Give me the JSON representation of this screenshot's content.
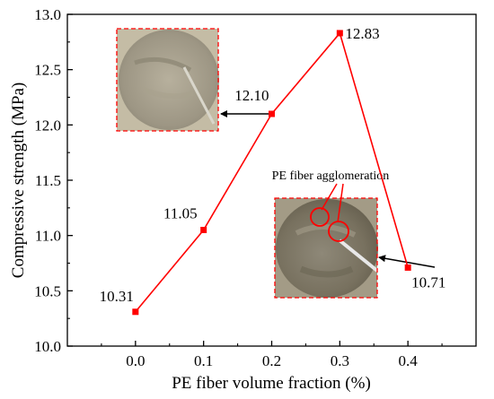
{
  "chart_data": {
    "type": "line",
    "xlabel": "PE fiber volume fraction (%)",
    "ylabel": "Compressive strength (MPa)",
    "xlim": [
      -0.1,
      0.5
    ],
    "ylim": [
      10.0,
      13.0
    ],
    "x_ticks": [
      "0.0",
      "0.1",
      "0.2",
      "0.3",
      "0.4"
    ],
    "x_tick_values": [
      0.0,
      0.1,
      0.2,
      0.3,
      0.4
    ],
    "y_ticks": [
      "10.0",
      "10.5",
      "11.0",
      "11.5",
      "12.0",
      "12.5",
      "13.0"
    ],
    "y_tick_values": [
      10.0,
      10.5,
      11.0,
      11.5,
      12.0,
      12.5,
      13.0
    ],
    "grid": false,
    "series": [
      {
        "x": [
          0.0,
          0.1,
          0.2,
          0.3,
          0.4
        ],
        "y": [
          10.31,
          11.05,
          12.1,
          12.83,
          10.71
        ],
        "labels": [
          "10.31",
          "11.05",
          "12.10",
          "12.83",
          "10.71"
        ],
        "color": "#ff0000",
        "marker": "square"
      }
    ],
    "annotations": [
      {
        "text": "PE fiber agglomeration"
      }
    ],
    "inset_images": [
      {
        "name": "specimen-0.2",
        "points_to": [
          0.2,
          12.1
        ],
        "frame_color": "#ff0000"
      },
      {
        "name": "specimen-0.4",
        "points_to": [
          0.4,
          10.71
        ],
        "frame_color": "#ff0000"
      }
    ]
  }
}
